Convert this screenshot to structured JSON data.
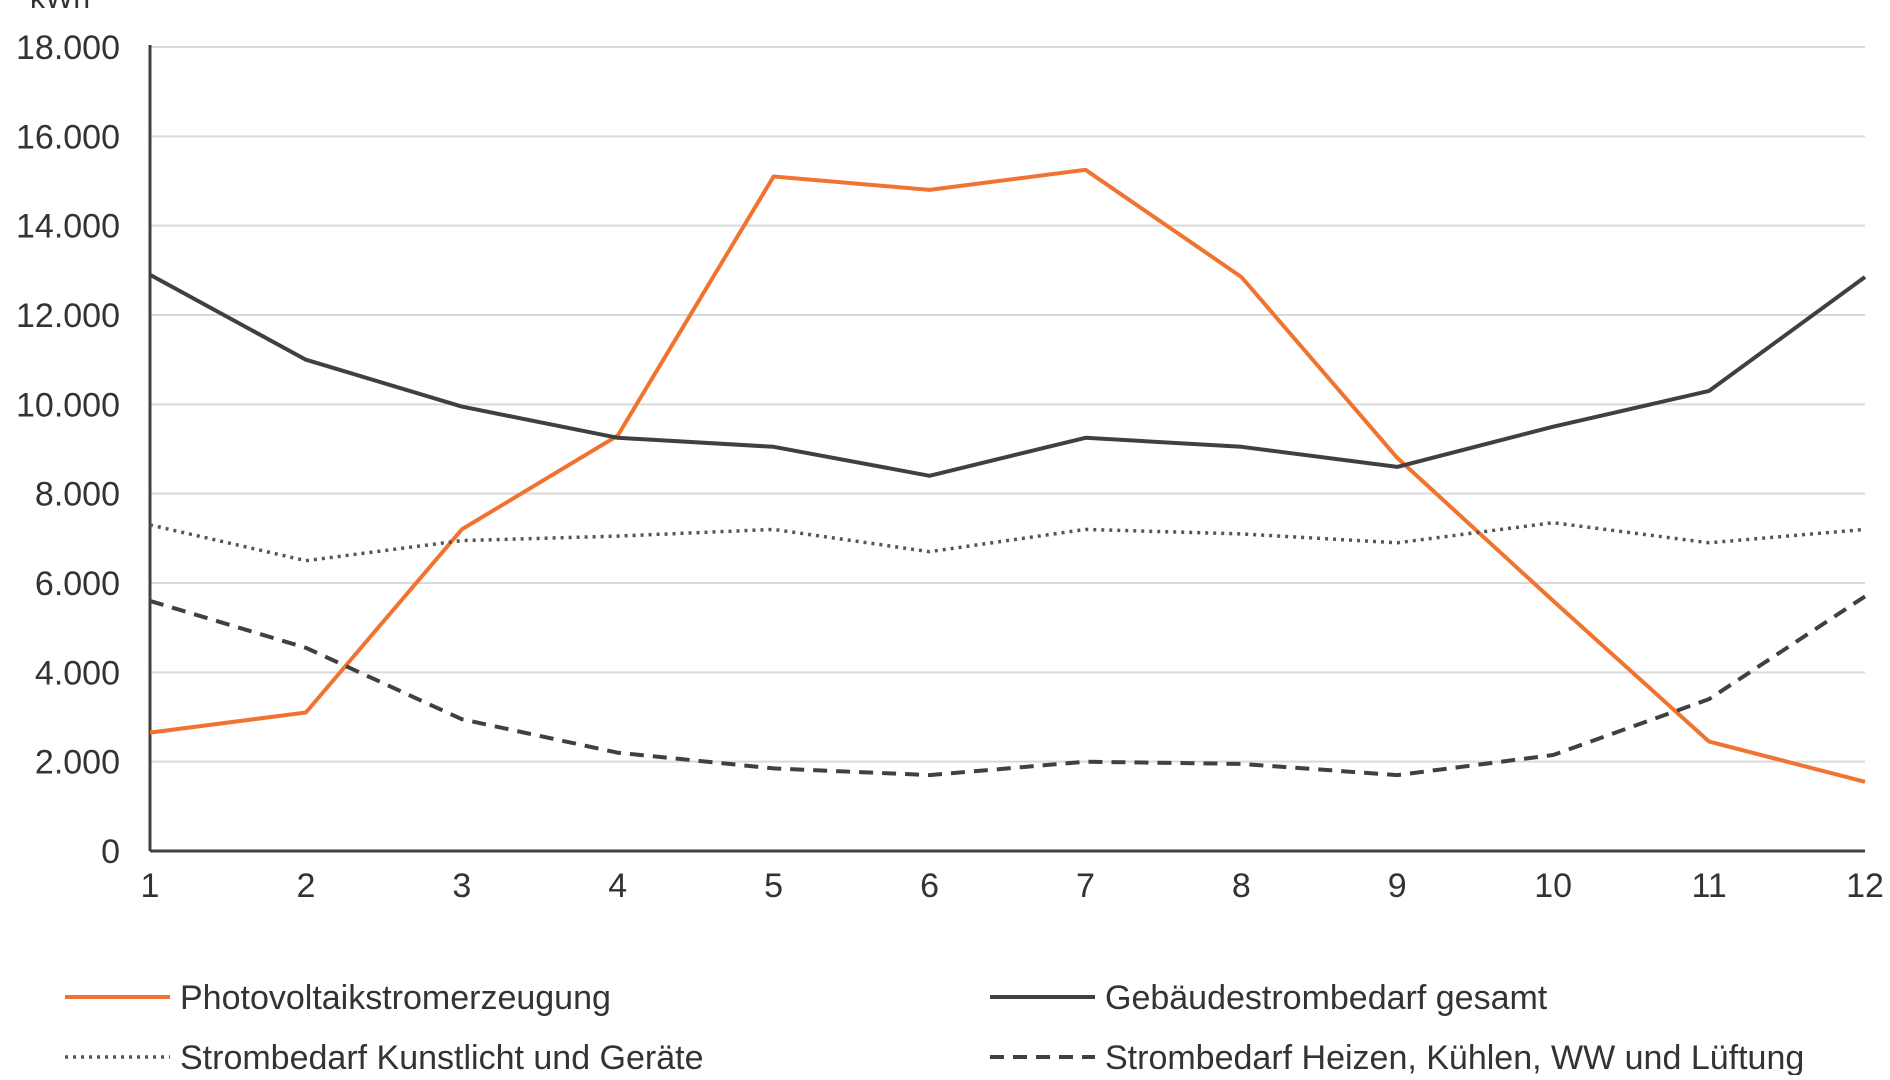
{
  "chart_data": {
    "type": "line",
    "y_unit": "kWh",
    "x": [
      1,
      2,
      3,
      4,
      5,
      6,
      7,
      8,
      9,
      10,
      11,
      12
    ],
    "ylim": [
      0,
      18000
    ],
    "yticks": [
      0,
      2000,
      4000,
      6000,
      8000,
      10000,
      12000,
      14000,
      16000,
      18000
    ],
    "ytick_labels": [
      "0",
      "2.000",
      "4.000",
      "6.000",
      "8.000",
      "10.000",
      "12.000",
      "14.000",
      "16.000",
      "18.000"
    ],
    "grid": true,
    "legend_position": "bottom",
    "series": [
      {
        "name": "Photovoltaikstromerzeugung",
        "color": "#f07330",
        "style": "solid",
        "values": [
          2650,
          3100,
          7200,
          9300,
          15100,
          14800,
          15250,
          12850,
          8800,
          5600,
          2450,
          1550
        ]
      },
      {
        "name": "Gebäudestrombedarf gesamt",
        "color": "#404040",
        "style": "solid",
        "values": [
          12900,
          11000,
          9950,
          9250,
          9050,
          8400,
          9250,
          9050,
          8600,
          9500,
          10300,
          12850
        ]
      },
      {
        "name": "Strombedarf Kunstlicht und Geräte",
        "color": "#555555",
        "style": "dotted",
        "values": [
          7300,
          6500,
          6950,
          7050,
          7200,
          6700,
          7200,
          7100,
          6900,
          7350,
          6900,
          7200
        ]
      },
      {
        "name": "Strombedarf Heizen, Kühlen, WW und Lüftung",
        "color": "#404040",
        "style": "dashed",
        "values": [
          5600,
          4550,
          2950,
          2200,
          1850,
          1700,
          2000,
          1950,
          1700,
          2150,
          3400,
          5700
        ]
      }
    ]
  }
}
